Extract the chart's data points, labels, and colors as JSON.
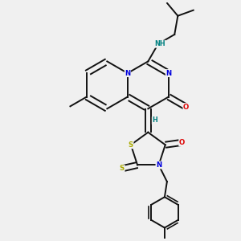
{
  "background_color": "#f0f0f0",
  "atom_colors": {
    "C": "#000000",
    "N": "#0000dd",
    "O": "#dd0000",
    "S": "#aaaa00",
    "H": "#008080"
  },
  "bond_color": "#111111",
  "bond_lw": 1.4
}
